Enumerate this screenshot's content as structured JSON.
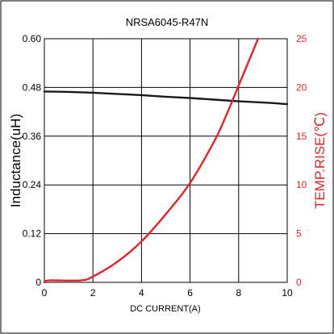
{
  "chart_data": {
    "type": "line",
    "title": "NRSA6045-R47N",
    "xlabel": "DC CURRENT(A)",
    "ylabel": "Inductance(uH)",
    "ylabel_right": "TEMP.RISE(℃)",
    "xlim": [
      0,
      10
    ],
    "ylim": [
      0,
      0.6
    ],
    "ylim_right": [
      0,
      25
    ],
    "x_ticks": [
      "0",
      "2",
      "4",
      "6",
      "8",
      "10"
    ],
    "y_ticks": [
      "0",
      "0.12",
      "0.24",
      "0.36",
      "0.48",
      "0.60"
    ],
    "y_ticks_right": [
      "0",
      "5",
      "10",
      "15",
      "20",
      "25"
    ],
    "grid": true,
    "colors": {
      "inductance": "#1a1a1a",
      "temp_rise": "#e4232a"
    },
    "series": [
      {
        "axis": "left",
        "x": [
          0,
          1,
          2,
          3,
          4,
          5,
          6,
          7,
          8,
          9,
          10
        ],
        "values": [
          0.47,
          0.469,
          0.467,
          0.464,
          0.461,
          0.457,
          0.454,
          0.45,
          0.446,
          0.443,
          0.439
        ]
      },
      {
        "axis": "right",
        "x": [
          0,
          0.2,
          1.5,
          2.0,
          3.0,
          4.0,
          5.0,
          6.0,
          7.0,
          7.5,
          8.0,
          8.5,
          8.8
        ],
        "values": [
          0,
          0.2,
          0.2,
          0.6,
          2.1,
          4.2,
          7.0,
          10.2,
          14.5,
          17.2,
          20.2,
          23.2,
          25.0
        ]
      }
    ]
  }
}
